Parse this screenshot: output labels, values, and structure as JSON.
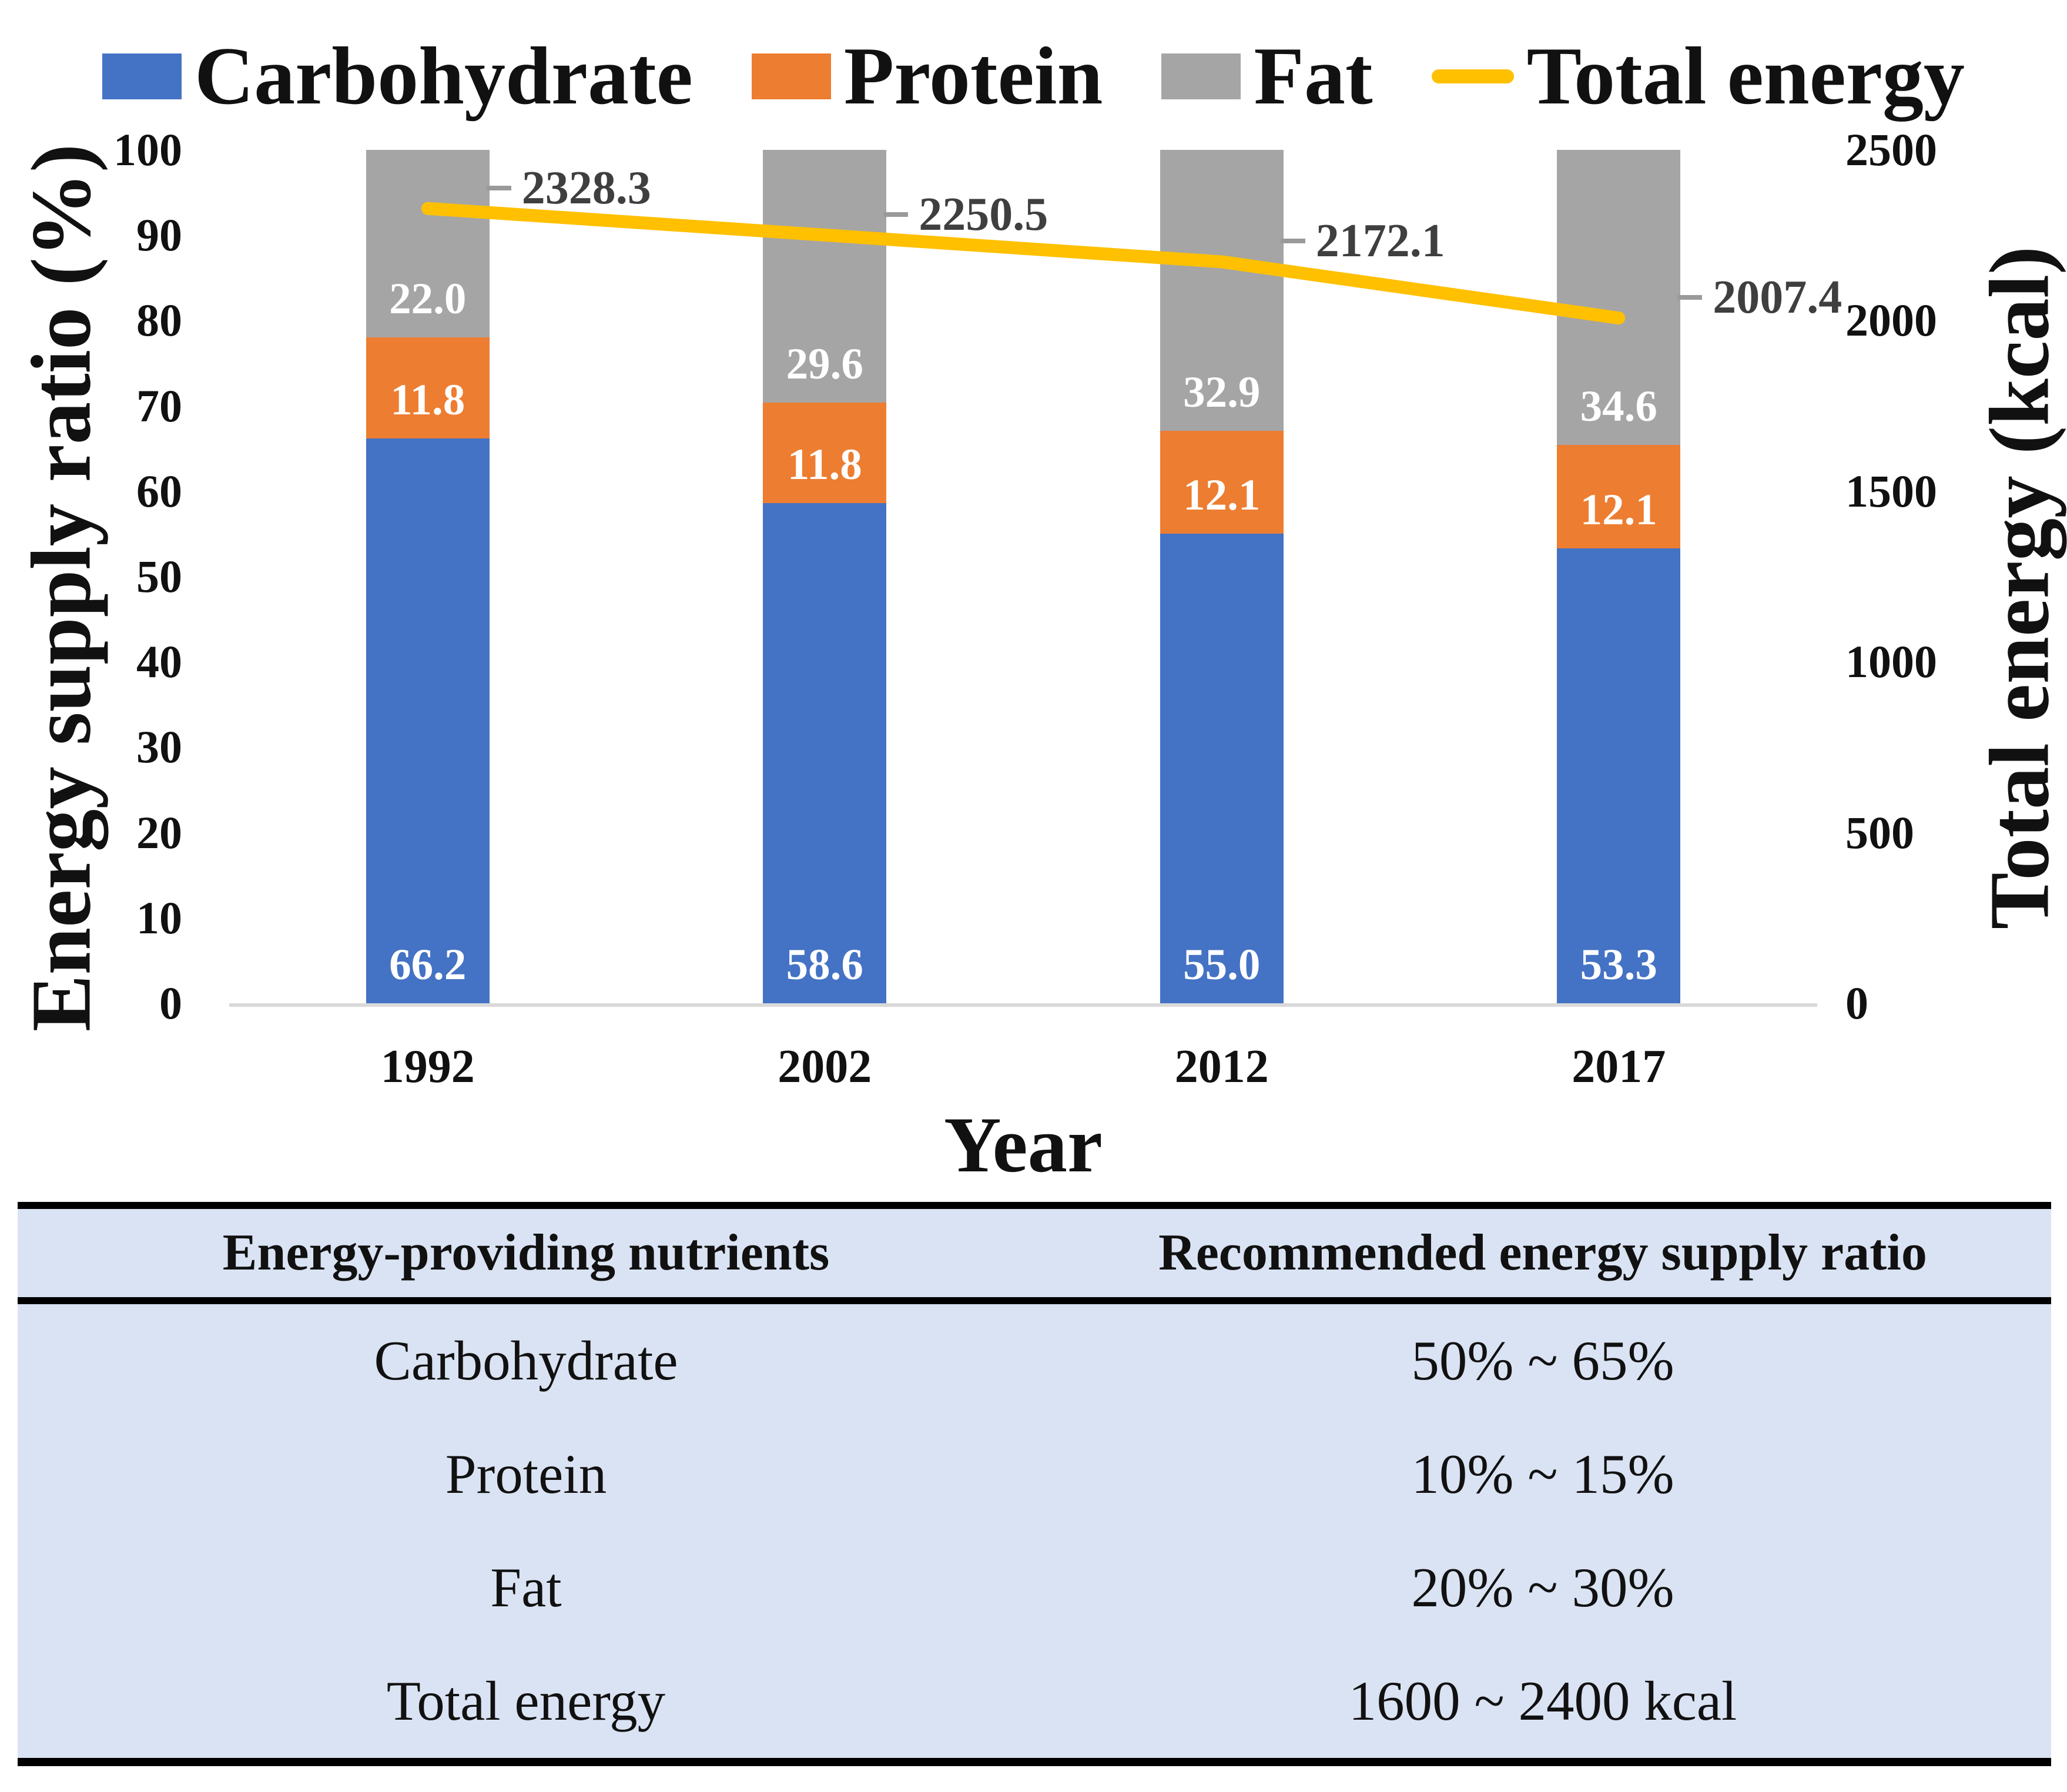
{
  "chart_data": {
    "type": "bar",
    "subtype": "stacked-100-percent-with-line-overlay",
    "title": "",
    "categories": [
      "1992",
      "2002",
      "2012",
      "2017"
    ],
    "series": [
      {
        "name": "Carbohydrate",
        "type": "bar",
        "axis": "left",
        "color": "#4472c4",
        "values": [
          "66.2",
          "58.6",
          "55.0",
          "53.3"
        ]
      },
      {
        "name": "Protein",
        "type": "bar",
        "axis": "left",
        "color": "#ed7d31",
        "values": [
          "11.8",
          "11.8",
          "12.1",
          "12.1"
        ]
      },
      {
        "name": "Fat",
        "type": "bar",
        "axis": "left",
        "color": "#a5a5a5",
        "values": [
          "22.0",
          "29.6",
          "32.9",
          "34.6"
        ]
      },
      {
        "name": "Total energy",
        "type": "line",
        "axis": "right",
        "color": "#ffc000",
        "values": [
          "2328.3",
          "2250.5",
          "2172.1",
          "2007.4"
        ]
      }
    ],
    "xlabel": "Year",
    "ylabel_left": "Energy supply ratio (%)",
    "ylabel_right": "Total energy (kcal)",
    "y_left_ticks": [
      "0",
      "10",
      "20",
      "30",
      "40",
      "50",
      "60",
      "70",
      "80",
      "90",
      "100"
    ],
    "y_right_ticks": [
      "0",
      "500",
      "1000",
      "1500",
      "2000",
      "2500"
    ],
    "ylim_left": [
      0,
      100
    ],
    "ylim_right": [
      0,
      2500
    ],
    "grid": false,
    "legend_position": "top",
    "bar_label_color": "#ffffff",
    "line_label_color": "#3f3f3f",
    "leader_dash_color": "#9a9a9a",
    "axis_line_color": "#d9d9d9"
  },
  "table": {
    "headers": [
      "Energy-providing nutrients",
      "Recommended energy supply ratio"
    ],
    "rows": [
      [
        "Carbohydrate",
        "50% ~ 65%"
      ],
      [
        "Protein",
        "10% ~ 15%"
      ],
      [
        "Fat",
        "20% ~ 30%"
      ],
      [
        "Total energy",
        "1600 ~ 2400 kcal"
      ]
    ],
    "background": "#dae3f3",
    "border_color": "#000000"
  }
}
